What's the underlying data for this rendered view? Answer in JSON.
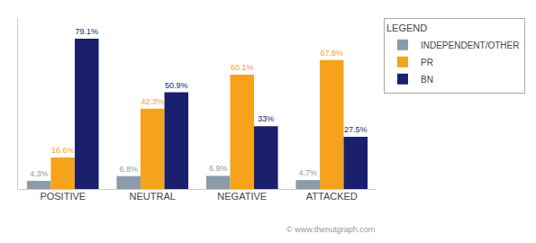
{
  "chart_data": {
    "type": "bar",
    "categories": [
      "POSITIVE",
      "NEUTRAL",
      "NEGATIVE",
      "ATTACKED"
    ],
    "series": [
      {
        "name": "INDEPENDENT/OTHER",
        "color": "#8c9aaa",
        "values": [
          4.3,
          6.8,
          6.9,
          4.7
        ],
        "value_labels": [
          "4.3%",
          "6.8%",
          "6.9%",
          "4.7%"
        ]
      },
      {
        "name": "PR",
        "color": "#f5a31a",
        "values": [
          16.6,
          42.3,
          60.1,
          67.8
        ],
        "value_labels": [
          "16.6%",
          "42.3%",
          "60.1%",
          "67.8%"
        ]
      },
      {
        "name": "BN",
        "color": "#1a1f6e",
        "values": [
          79.1,
          50.9,
          33.0,
          27.5
        ],
        "value_labels": [
          "79.1%",
          "50.9%",
          "33%",
          "27.5%"
        ]
      }
    ],
    "ylim": [
      0,
      90
    ],
    "grid": false,
    "tick_labels": "x",
    "data_labels": true,
    "legend": "right",
    "legend_title": "LEGEND",
    "annotations": [
      "© www.thenutgraph.com"
    ]
  }
}
